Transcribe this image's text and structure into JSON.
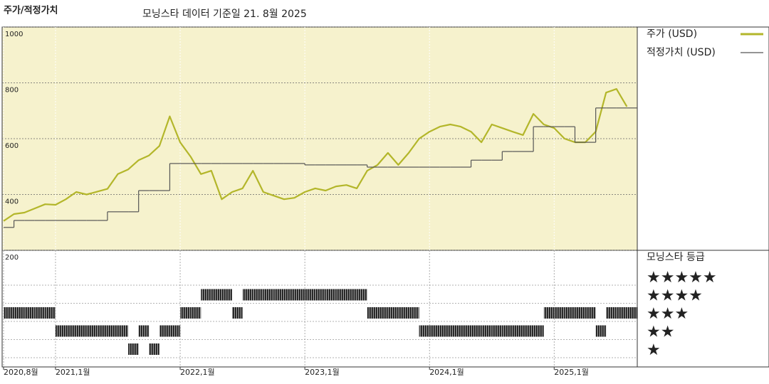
{
  "chart_data": {
    "type": "line",
    "title": "주가/적정가치",
    "subtitle": "모닝스타 데이터 기준일 21. 8월 2025",
    "x": [
      "2020-08",
      "2020-09",
      "2020-10",
      "2020-11",
      "2020-12",
      "2021-01",
      "2021-02",
      "2021-03",
      "2021-04",
      "2021-05",
      "2021-06",
      "2021-07",
      "2021-08",
      "2021-09",
      "2021-10",
      "2021-11",
      "2021-12",
      "2022-01",
      "2022-02",
      "2022-03",
      "2022-04",
      "2022-05",
      "2022-06",
      "2022-07",
      "2022-08",
      "2022-09",
      "2022-10",
      "2022-11",
      "2022-12",
      "2023-01",
      "2023-02",
      "2023-03",
      "2023-04",
      "2023-05",
      "2023-06",
      "2023-07",
      "2023-08",
      "2023-09",
      "2023-10",
      "2023-11",
      "2023-12",
      "2024-01",
      "2024-02",
      "2024-03",
      "2024-04",
      "2024-05",
      "2024-06",
      "2024-07",
      "2024-08",
      "2024-09",
      "2024-10",
      "2024-11",
      "2024-12",
      "2025-01",
      "2025-02",
      "2025-03",
      "2025-04",
      "2025-05",
      "2025-06",
      "2025-07",
      "2025-08"
    ],
    "xlim": [
      "2020-08",
      "2025-09"
    ],
    "xticks": [
      {
        "value": "2020-08",
        "label": "2020,8월"
      },
      {
        "value": "2021-01",
        "label": "2021,1월"
      },
      {
        "value": "2022-01",
        "label": "2022,1월"
      },
      {
        "value": "2023-01",
        "label": "2023,1월"
      },
      {
        "value": "2024-01",
        "label": "2024,1월"
      },
      {
        "value": "2025-01",
        "label": "2025,1월"
      }
    ],
    "ylim": [
      200,
      1000
    ],
    "yticks": [
      200,
      400,
      600,
      800,
      1000
    ],
    "grid": true,
    "series": [
      {
        "name": "주가 (USD)",
        "color": "#b3b62a",
        "values": [
          305,
          330,
          335,
          350,
          365,
          363,
          383,
          409,
          400,
          410,
          420,
          473,
          490,
          523,
          540,
          574,
          680,
          587,
          536,
          473,
          485,
          383,
          409,
          422,
          485,
          409,
          396,
          383,
          388,
          409,
          422,
          414,
          429,
          434,
          422,
          485,
          506,
          549,
          506,
          549,
          600,
          625,
          643,
          651,
          643,
          625,
          587,
          651,
          638,
          625,
          613,
          689,
          651,
          638,
          600,
          587,
          587,
          625,
          765,
          778,
          715
        ]
      },
      {
        "name": "적정가치 (USD)",
        "color": "#555555",
        "step": true,
        "values": [
          282,
          307,
          307,
          307,
          307,
          307,
          307,
          307,
          307,
          307,
          338,
          338,
          338,
          414,
          414,
          414,
          511,
          511,
          511,
          511,
          511,
          511,
          511,
          511,
          511,
          511,
          511,
          511,
          511,
          506,
          506,
          506,
          506,
          506,
          506,
          498,
          498,
          498,
          498,
          498,
          498,
          498,
          498,
          498,
          498,
          523,
          523,
          523,
          554,
          554,
          554,
          643,
          643,
          643,
          643,
          587,
          587,
          710,
          710,
          710,
          710
        ]
      }
    ],
    "ratings": {
      "title": "모닝스타 등급",
      "levels": [
        5,
        4,
        3,
        2,
        1
      ],
      "labels": [
        "★★★★★",
        "★★★★",
        "★★★",
        "★★",
        "★"
      ],
      "values": [
        3,
        3,
        3,
        3,
        3,
        2,
        2,
        2,
        2,
        2,
        2,
        2,
        1,
        2,
        1,
        2,
        2,
        3,
        3,
        4,
        4,
        4,
        3,
        4,
        4,
        4,
        4,
        4,
        4,
        4,
        4,
        4,
        4,
        4,
        4,
        3,
        3,
        3,
        3,
        3,
        2,
        2,
        2,
        2,
        2,
        2,
        2,
        2,
        2,
        2,
        2,
        2,
        3,
        3,
        3,
        3,
        3,
        2,
        3,
        3,
        3
      ]
    }
  }
}
